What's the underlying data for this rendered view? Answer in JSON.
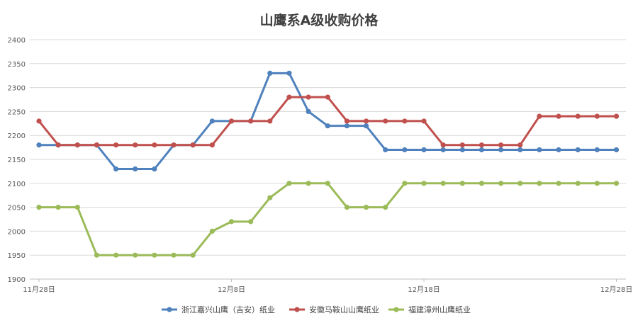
{
  "chart_data": {
    "type": "line",
    "title": "山鹰系A级收购价格",
    "xlabel": "",
    "ylabel": "",
    "ylim": [
      1900,
      2400
    ],
    "yticks": [
      1900,
      1950,
      2000,
      2050,
      2100,
      2150,
      2200,
      2250,
      2300,
      2350,
      2400
    ],
    "x_tick_labels": [
      {
        "index": 0,
        "label": "11月28日"
      },
      {
        "index": 10,
        "label": "12月8日"
      },
      {
        "index": 20,
        "label": "12月18日"
      },
      {
        "index": 30,
        "label": "12月28日"
      }
    ],
    "grid": true,
    "legend_position": "bottom",
    "x": [
      "11月28日",
      "11月29日",
      "11月30日",
      "12月1日",
      "12月2日",
      "12月3日",
      "12月4日",
      "12月5日",
      "12月6日",
      "12月7日",
      "12月8日",
      "12月9日",
      "12月10日",
      "12月11日",
      "12月12日",
      "12月13日",
      "12月14日",
      "12月15日",
      "12月16日",
      "12月17日",
      "12月18日",
      "12月19日",
      "12月20日",
      "12月21日",
      "12月22日",
      "12月23日",
      "12月24日",
      "12月25日",
      "12月26日",
      "12月27日",
      "12月28日"
    ],
    "series": [
      {
        "name": "浙江嘉兴山鹰（吉安）纸业",
        "color": "#4f81bd",
        "values": [
          2180,
          2180,
          2180,
          2180,
          2130,
          2130,
          2130,
          2180,
          2180,
          2230,
          2230,
          2230,
          2330,
          2330,
          2250,
          2220,
          2220,
          2220,
          2170,
          2170,
          2170,
          2170,
          2170,
          2170,
          2170,
          2170,
          2170,
          2170,
          2170,
          2170,
          2170
        ]
      },
      {
        "name": "安徽马鞍山山鹰纸业",
        "color": "#c0504d",
        "values": [
          2230,
          2180,
          2180,
          2180,
          2180,
          2180,
          2180,
          2180,
          2180,
          2180,
          2230,
          2230,
          2230,
          2280,
          2280,
          2280,
          2230,
          2230,
          2230,
          2230,
          2230,
          2180,
          2180,
          2180,
          2180,
          2180,
          2240,
          2240,
          2240,
          2240,
          2240
        ]
      },
      {
        "name": "福建漳州山鹰纸业",
        "color": "#9bbb59",
        "values": [
          2050,
          2050,
          2050,
          1950,
          1950,
          1950,
          1950,
          1950,
          1950,
          2000,
          2020,
          2020,
          2070,
          2100,
          2100,
          2100,
          2050,
          2050,
          2050,
          2100,
          2100,
          2100,
          2100,
          2100,
          2100,
          2100,
          2100,
          2100,
          2100,
          2100,
          2100
        ]
      }
    ]
  }
}
